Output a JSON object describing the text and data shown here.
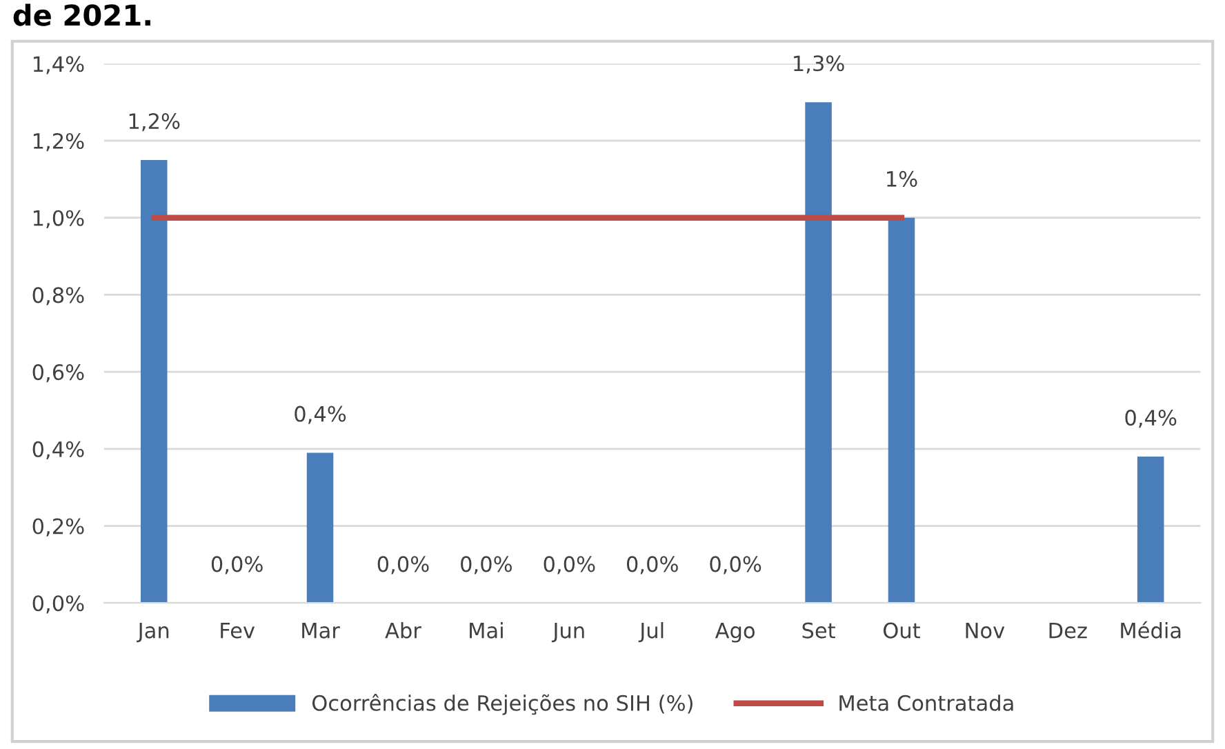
{
  "chart_data": {
    "type": "bar",
    "title": "de 2021.",
    "categories": [
      "Jan",
      "Fev",
      "Mar",
      "Abr",
      "Mai",
      "Jun",
      "Jul",
      "Ago",
      "Set",
      "Out",
      "Nov",
      "Dez",
      "Média"
    ],
    "series": [
      {
        "name": "Ocorrências de Rejeições no SIH (%)",
        "color": "#4a7ebb",
        "values": [
          1.15,
          0,
          0.39,
          0,
          0,
          0,
          0,
          0,
          1.3,
          1.0,
          null,
          null,
          0.38
        ],
        "value_labels": [
          "1,2%",
          "0,0%",
          "0,4%",
          "0,0%",
          "0,0%",
          "0,0%",
          "0,0%",
          "0,0%",
          "1,3%",
          "1%",
          null,
          null,
          "0,4%"
        ]
      },
      {
        "name": "Meta Contratada",
        "type": "line",
        "color": "#be4b48",
        "values": [
          1.0,
          1.0,
          1.0,
          1.0,
          1.0,
          1.0,
          1.0,
          1.0,
          1.0,
          1.0,
          null,
          null,
          null
        ]
      }
    ],
    "ylim": [
      0,
      1.4
    ],
    "yticks": [
      {
        "value": 0,
        "label": "0,0%"
      },
      {
        "value": 0.2,
        "label": "0,2%"
      },
      {
        "value": 0.4,
        "label": "0,4%"
      },
      {
        "value": 0.6,
        "label": "0,6%"
      },
      {
        "value": 0.8,
        "label": "0,8%"
      },
      {
        "value": 1.0,
        "label": "1,0%"
      },
      {
        "value": 1.2,
        "label": "1,2%"
      },
      {
        "value": 1.4,
        "label": "1,4%"
      }
    ],
    "grid": "y",
    "legend": "bottom",
    "marker": "none",
    "line_style": "solid"
  }
}
